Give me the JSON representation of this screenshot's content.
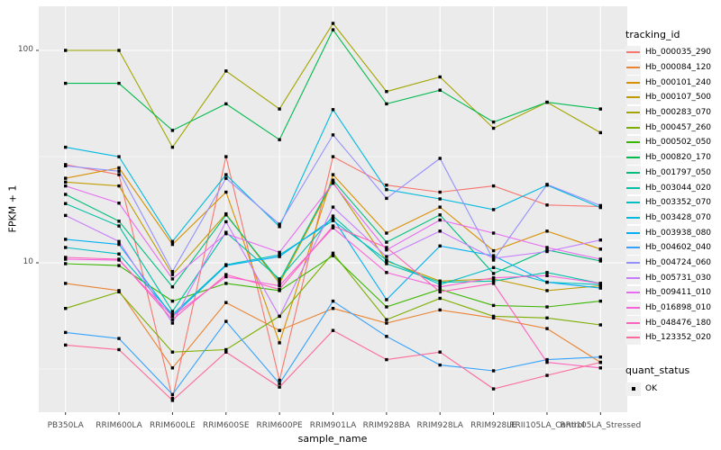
{
  "figure": {
    "background": "#FFFFFF",
    "panel_background": "#EBEBEB",
    "gridline_color": "#FFFFFF",
    "tick_mark_color": "#333333",
    "tick_label_color": "#4D4D4D",
    "point_color": "#000000"
  },
  "axes": {
    "x_title": "sample_name",
    "y_title": "FPKM + 1",
    "y_tick_labels": [
      "100",
      "10"
    ]
  },
  "legend": {
    "tracking_title": "tracking_id",
    "quant_title": "quant_status",
    "quant_items": [
      {
        "label": "OK",
        "marker": "black-square"
      }
    ]
  },
  "chart_data": {
    "type": "line",
    "title": "",
    "xlabel": "sample_name",
    "ylabel": "FPKM + 1",
    "y_scale": "log10",
    "ylim": [
      2.0,
      160
    ],
    "y_major_ticks": [
      10,
      100
    ],
    "y_minor_gridlines": [
      3.1623,
      31.623
    ],
    "grid": true,
    "legend_position": "right",
    "marker": {
      "shape": "square",
      "color": "#000000",
      "size": 3.4
    },
    "categories": [
      "PB350LA",
      "RRIM600LA",
      "RRIM600LE",
      "RRIM600SE",
      "RRIM600PE",
      "RRIM901LA",
      "RRIM928BA",
      "RRIM928LA",
      "RRIM928LE",
      "RRII105LA_Control",
      "RRII105LA_Stressed"
    ],
    "series": [
      {
        "name": "Hb_000035_290",
        "color": "#F8766D",
        "values": [
          29,
          26,
          2.3,
          31.6,
          2.8,
          31.6,
          23.2,
          21.5,
          23,
          18.7,
          18.4
        ]
      },
      {
        "name": "Hb_000084_120",
        "color": "#EA8331",
        "values": [
          8.0,
          7.4,
          3.2,
          6.5,
          4.8,
          6.1,
          5.2,
          6.0,
          5.5,
          4.9,
          3.4
        ]
      },
      {
        "name": "Hb_000101_240",
        "color": "#D89000",
        "values": [
          25,
          28,
          12.2,
          21.5,
          4.2,
          26,
          13.8,
          18.3,
          11.4,
          14.1,
          11.6
        ]
      },
      {
        "name": "Hb_000107_500",
        "color": "#C09B00",
        "values": [
          24,
          23,
          8.8,
          17,
          8.0,
          24,
          10.2,
          8.2,
          8.4,
          7.4,
          7.8
        ]
      },
      {
        "name": "Hb_000283_070",
        "color": "#A3A500",
        "values": [
          100,
          100,
          35,
          80,
          53,
          134,
          64,
          75,
          43,
          57,
          41
        ]
      },
      {
        "name": "Hb_000457_260",
        "color": "#7CAE00",
        "values": [
          6.1,
          7.3,
          3.8,
          3.9,
          5.6,
          11.1,
          5.4,
          6.8,
          5.6,
          5.5,
          5.1
        ]
      },
      {
        "name": "Hb_000502_050",
        "color": "#39B600",
        "values": [
          9.9,
          9.7,
          6.6,
          8.0,
          7.4,
          10.8,
          6.2,
          7.5,
          6.3,
          6.2,
          6.6
        ]
      },
      {
        "name": "Hb_000820_170",
        "color": "#00BB4E",
        "values": [
          70,
          70,
          42,
          56,
          38,
          125,
          56,
          65,
          46,
          57,
          53
        ]
      },
      {
        "name": "Hb_001797_050",
        "color": "#00BF7D",
        "values": [
          21,
          15.7,
          7.7,
          16.8,
          8.2,
          24.5,
          12.5,
          16.8,
          8.9,
          11.5,
          10.2
        ]
      },
      {
        "name": "Hb_003044_020",
        "color": "#00C1A3",
        "values": [
          19,
          14.9,
          5.9,
          13.9,
          8.4,
          16.6,
          9.9,
          8.1,
          8.2,
          9.0,
          8.0
        ]
      },
      {
        "name": "Hb_003352_070",
        "color": "#00BFC4",
        "values": [
          11.8,
          11.0,
          5.7,
          9.8,
          10.9,
          15.8,
          10.3,
          7.9,
          9.5,
          8.1,
          7.9
        ]
      },
      {
        "name": "Hb_003428_070",
        "color": "#00BAE0",
        "values": [
          35,
          31.6,
          12.6,
          26,
          14.8,
          52.6,
          22.1,
          20,
          17.8,
          23.2,
          18.2
        ]
      },
      {
        "name": "Hb_003938_080",
        "color": "#00B0F6",
        "values": [
          12.9,
          12.2,
          5.6,
          9.7,
          10.7,
          16.2,
          6.7,
          12.0,
          10.8,
          8.1,
          7.6
        ]
      },
      {
        "name": "Hb_004602_040",
        "color": "#35A2FF",
        "values": [
          4.7,
          4.4,
          2.4,
          5.3,
          2.7,
          6.6,
          4.5,
          3.3,
          3.1,
          3.5,
          3.6
        ]
      },
      {
        "name": "Hb_004724_060",
        "color": "#9590FF",
        "values": [
          28.6,
          27,
          9.1,
          25,
          15.2,
          40,
          20.1,
          31,
          10.3,
          23.4,
          18.6
        ]
      },
      {
        "name": "Hb_005731_030",
        "color": "#C77CFF",
        "values": [
          16.7,
          12.6,
          5.2,
          15.6,
          5.6,
          18.3,
          10.7,
          14.1,
          10.5,
          11.3,
          12.8
        ]
      },
      {
        "name": "Hb_009411_010",
        "color": "#E76BF3",
        "values": [
          23,
          19.1,
          8.4,
          13.7,
          11.2,
          23.7,
          11.5,
          15.9,
          13.8,
          11.8,
          10.4
        ]
      },
      {
        "name": "Hb_016898_010",
        "color": "#FA62DB",
        "values": [
          10.4,
          10.3,
          5.6,
          8.6,
          7.8,
          14.6,
          9.0,
          7.7,
          8.5,
          8.7,
          8.0
        ]
      },
      {
        "name": "Hb_048476_180",
        "color": "#FF62BC",
        "values": [
          10.6,
          10.4,
          5.4,
          8.8,
          7.5,
          14.9,
          11.8,
          7.3,
          8.0,
          3.4,
          3.2
        ]
      },
      {
        "name": "Hb_123352_020",
        "color": "#FF6A98",
        "values": [
          4.1,
          3.9,
          2.25,
          3.8,
          2.6,
          4.8,
          3.5,
          3.8,
          2.55,
          2.95,
          3.4
        ]
      }
    ]
  }
}
